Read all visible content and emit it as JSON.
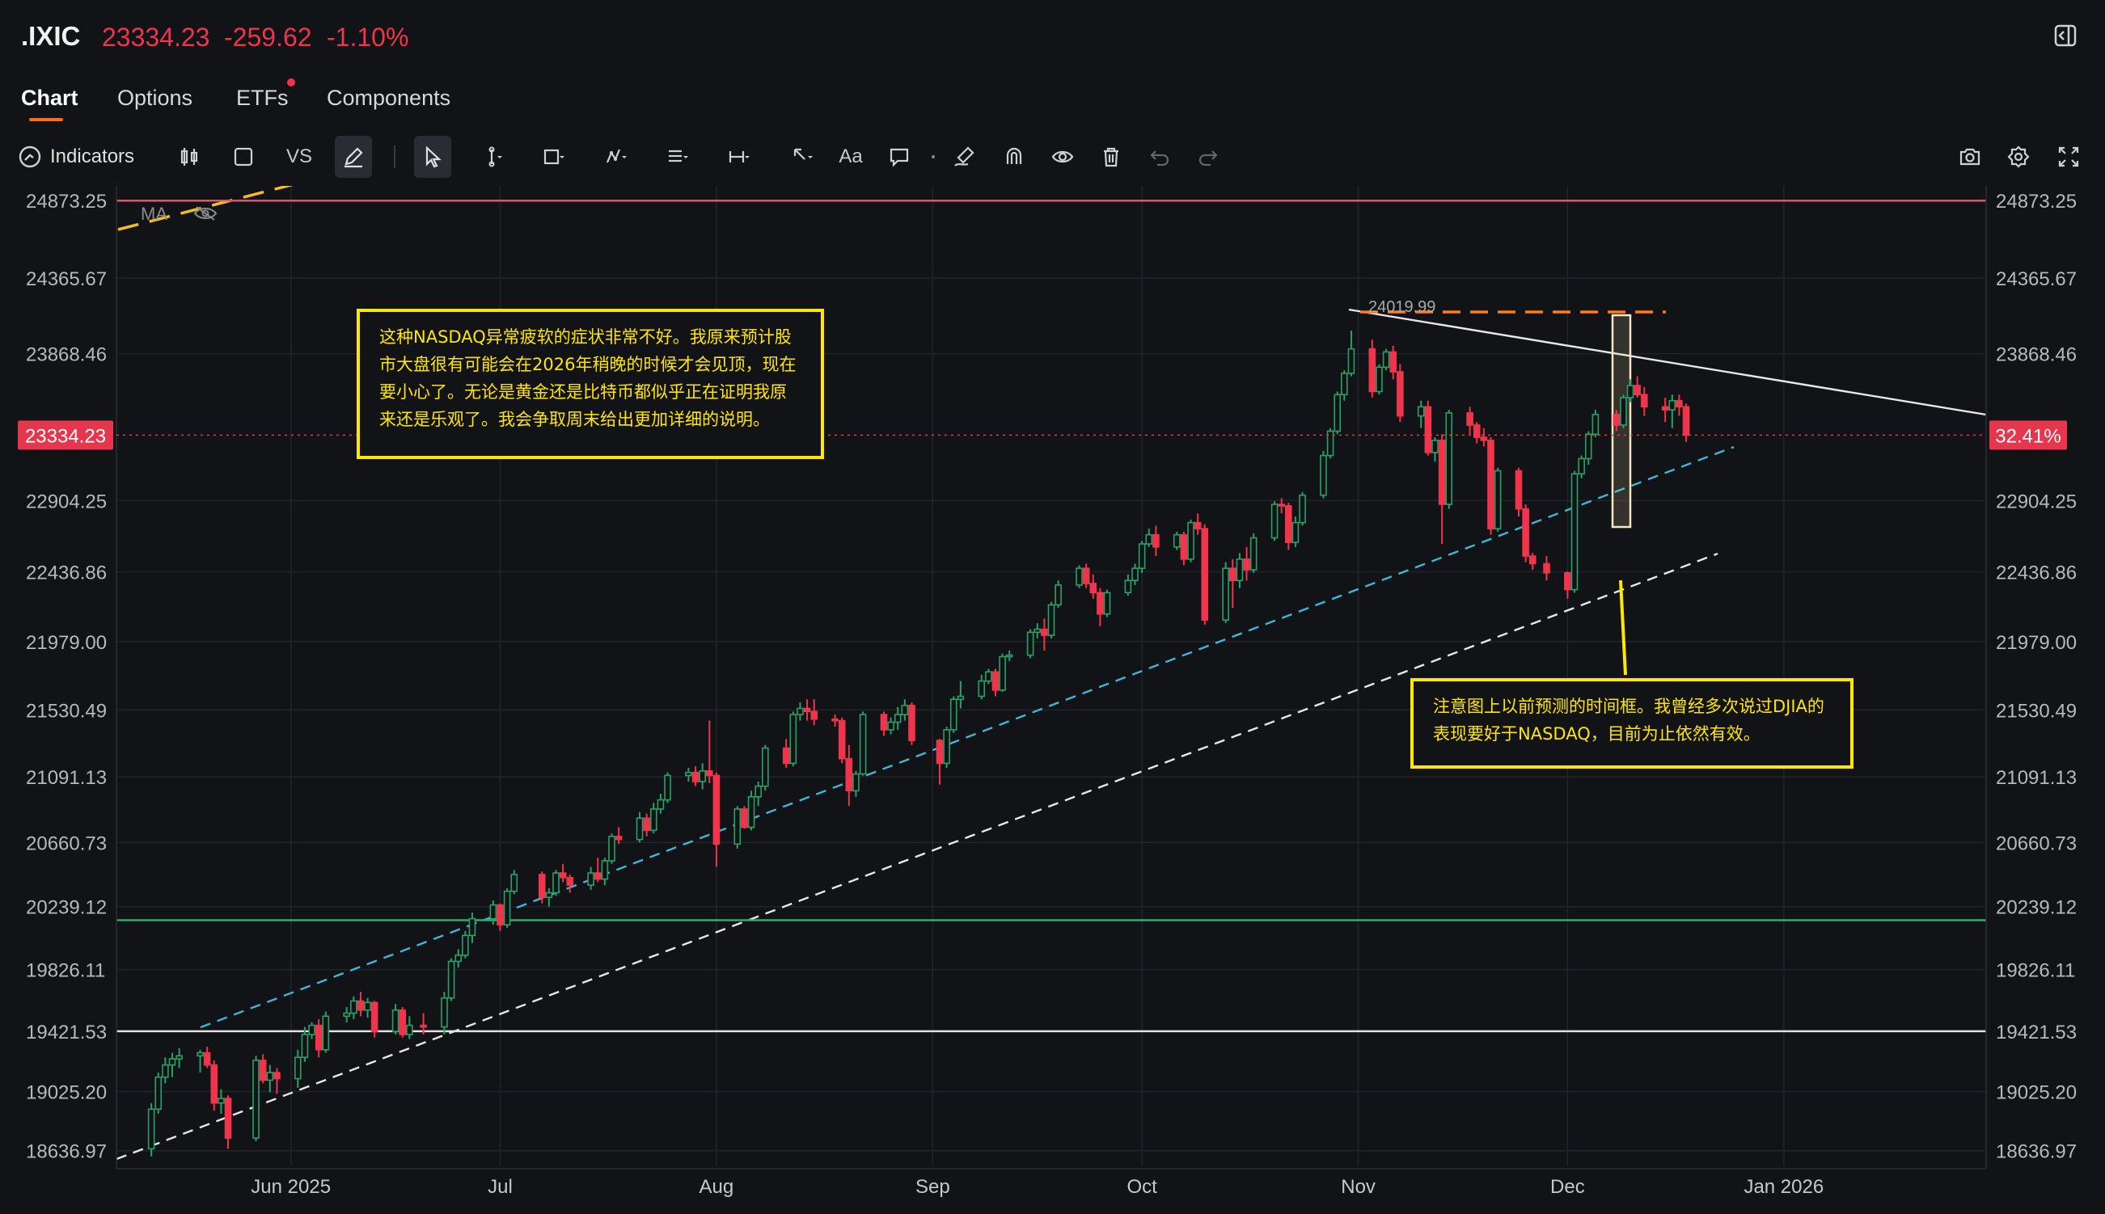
{
  "header": {
    "symbol": ".IXIC",
    "price": "23334.23",
    "change": "-259.62",
    "change_pct": "-1.10%"
  },
  "tabs": [
    {
      "label": "Chart",
      "active": true
    },
    {
      "label": "Options",
      "active": false
    },
    {
      "label": "ETFs",
      "active": false,
      "notification": true
    },
    {
      "label": "Components",
      "active": false
    }
  ],
  "toolbar": {
    "indicators_label": "Indicators",
    "vs_label": "VS",
    "text_label": "Aa"
  },
  "colors": {
    "up": "#26a269",
    "down": "#f0344c",
    "accent": "#ff6b1a",
    "annotation": "#ffe600"
  },
  "chart_data": {
    "type": "candlestick",
    "symbol": ".IXIC",
    "y_ticks": [
      "24873.25",
      "24365.67",
      "23868.46",
      "23334.23",
      "22904.25",
      "22436.86",
      "21979.00",
      "21530.49",
      "21091.13",
      "20660.73",
      "20239.12",
      "19826.11",
      "19421.53",
      "19025.20",
      "18636.97"
    ],
    "y_range": [
      18540,
      24970
    ],
    "x_ticks": [
      {
        "label": "Jun 2025",
        "date": "2025-06-01"
      },
      {
        "label": "Jul",
        "date": "2025-07-01"
      },
      {
        "label": "Aug",
        "date": "2025-08-01"
      },
      {
        "label": "Sep",
        "date": "2025-09-01"
      },
      {
        "label": "Oct",
        "date": "2025-10-01"
      },
      {
        "label": "Nov",
        "date": "2025-11-01"
      },
      {
        "label": "Dec",
        "date": "2025-12-01"
      },
      {
        "label": "Jan 2026",
        "date": "2026-01-01"
      }
    ],
    "x_range": [
      "2025-05-07",
      "2026-01-30"
    ],
    "last_price_label": "23334.23",
    "right_badge": "32.41%",
    "ma_label": "MA",
    "peak_label": "24019.99",
    "horizontal_lines": [
      {
        "value": 24873.25,
        "color": "#d9576a"
      },
      {
        "value": 20150,
        "color": "#2fae6a"
      },
      {
        "value": 19421.53,
        "color": "#e0e0e0"
      }
    ],
    "annotations": [
      {
        "text": "这种NASDAQ异常疲软的症状非常不好。我原来预计股市大盘很有可能会在2026年稍晚的时候才会见顶，现在要小心了。无论是黄金还是比特币都似乎正在证明我原来还是乐观了。我会争取周末给出更加详细的说明。"
      },
      {
        "text": "注意图上以前预测的时间框。我曾经多次说过DJIA的表现要好于NASDAQ，目前为止依然有效。"
      }
    ],
    "candles": [
      [
        "2025-05-12",
        18650,
        18950,
        18600,
        18910
      ],
      [
        "2025-05-13",
        18910,
        19150,
        18880,
        19120
      ],
      [
        "2025-05-14",
        19120,
        19250,
        19080,
        19200
      ],
      [
        "2025-05-15",
        19200,
        19280,
        19120,
        19240
      ],
      [
        "2025-05-16",
        19240,
        19310,
        19180,
        19260
      ],
      [
        "2025-05-19",
        19260,
        19300,
        19150,
        19280
      ],
      [
        "2025-05-20",
        19280,
        19320,
        19180,
        19200
      ],
      [
        "2025-05-21",
        19200,
        19230,
        18900,
        18950
      ],
      [
        "2025-05-22",
        18950,
        19040,
        18880,
        18980
      ],
      [
        "2025-05-23",
        18980,
        19000,
        18650,
        18720
      ],
      [
        "2025-05-27",
        18720,
        19260,
        18700,
        19230
      ],
      [
        "2025-05-28",
        19230,
        19270,
        19080,
        19100
      ],
      [
        "2025-05-29",
        19100,
        19200,
        19020,
        19150
      ],
      [
        "2025-05-30",
        19150,
        19180,
        19010,
        19110
      ],
      [
        "2025-06-02",
        19110,
        19300,
        19050,
        19250
      ],
      [
        "2025-06-03",
        19250,
        19450,
        19220,
        19400
      ],
      [
        "2025-06-04",
        19400,
        19480,
        19370,
        19460
      ],
      [
        "2025-06-05",
        19460,
        19500,
        19250,
        19300
      ],
      [
        "2025-06-06",
        19300,
        19550,
        19280,
        19520
      ],
      [
        "2025-06-09",
        19520,
        19580,
        19480,
        19540
      ],
      [
        "2025-06-10",
        19540,
        19650,
        19500,
        19620
      ],
      [
        "2025-06-11",
        19620,
        19680,
        19520,
        19560
      ],
      [
        "2025-06-12",
        19560,
        19640,
        19510,
        19610
      ],
      [
        "2025-06-13",
        19610,
        19620,
        19380,
        19420
      ],
      [
        "2025-06-16",
        19420,
        19600,
        19400,
        19560
      ],
      [
        "2025-06-17",
        19560,
        19580,
        19380,
        19400
      ],
      [
        "2025-06-18",
        19400,
        19520,
        19370,
        19460
      ],
      [
        "2025-06-20",
        19460,
        19540,
        19400,
        19450
      ],
      [
        "2025-06-23",
        19450,
        19680,
        19400,
        19640
      ],
      [
        "2025-06-24",
        19640,
        19900,
        19620,
        19880
      ],
      [
        "2025-06-25",
        19880,
        19960,
        19840,
        19920
      ],
      [
        "2025-06-26",
        19920,
        20080,
        19900,
        20050
      ],
      [
        "2025-06-27",
        20050,
        20200,
        20000,
        20160
      ],
      [
        "2025-06-30",
        20160,
        20280,
        20120,
        20250
      ],
      [
        "2025-07-01",
        20250,
        20260,
        20080,
        20120
      ],
      [
        "2025-07-02",
        20120,
        20360,
        20100,
        20340
      ],
      [
        "2025-07-03",
        20340,
        20480,
        20320,
        20450
      ],
      [
        "2025-07-07",
        20450,
        20470,
        20260,
        20300
      ],
      [
        "2025-07-08",
        20300,
        20360,
        20240,
        20330
      ],
      [
        "2025-07-09",
        20330,
        20480,
        20310,
        20460
      ],
      [
        "2025-07-10",
        20460,
        20520,
        20400,
        20430
      ],
      [
        "2025-07-11",
        20430,
        20450,
        20330,
        20380
      ],
      [
        "2025-07-14",
        20380,
        20500,
        20350,
        20460
      ],
      [
        "2025-07-15",
        20460,
        20560,
        20400,
        20420
      ],
      [
        "2025-07-16",
        20420,
        20560,
        20380,
        20540
      ],
      [
        "2025-07-17",
        20540,
        20720,
        20520,
        20700
      ],
      [
        "2025-07-18",
        20700,
        20760,
        20650,
        20680
      ],
      [
        "2025-07-21",
        20680,
        20860,
        20660,
        20820
      ],
      [
        "2025-07-22",
        20820,
        20850,
        20700,
        20740
      ],
      [
        "2025-07-23",
        20740,
        20920,
        20720,
        20880
      ],
      [
        "2025-07-24",
        20880,
        20980,
        20850,
        20940
      ],
      [
        "2025-07-25",
        20940,
        21120,
        20920,
        21100
      ],
      [
        "2025-07-28",
        21100,
        21150,
        21060,
        21120
      ],
      [
        "2025-07-29",
        21120,
        21160,
        21030,
        21060
      ],
      [
        "2025-07-30",
        21060,
        21180,
        21010,
        21130
      ],
      [
        "2025-07-31",
        21130,
        21460,
        21050,
        21100
      ],
      [
        "2025-08-01",
        21100,
        21120,
        20500,
        20650
      ],
      [
        "2025-08-04",
        20650,
        20900,
        20620,
        20880
      ],
      [
        "2025-08-05",
        20880,
        20900,
        20750,
        20760
      ],
      [
        "2025-08-06",
        20760,
        21000,
        20740,
        20960
      ],
      [
        "2025-08-07",
        20960,
        21060,
        20900,
        21030
      ],
      [
        "2025-08-08",
        21030,
        21300,
        21000,
        21280
      ],
      [
        "2025-08-11",
        21280,
        21340,
        21150,
        21180
      ],
      [
        "2025-08-12",
        21180,
        21520,
        21160,
        21500
      ],
      [
        "2025-08-13",
        21500,
        21580,
        21460,
        21540
      ],
      [
        "2025-08-14",
        21540,
        21600,
        21460,
        21520
      ],
      [
        "2025-08-15",
        21520,
        21600,
        21430,
        21470
      ],
      [
        "2025-08-18",
        21470,
        21500,
        21420,
        21460
      ],
      [
        "2025-08-19",
        21460,
        21480,
        21180,
        21210
      ],
      [
        "2025-08-20",
        21210,
        21300,
        20900,
        21000
      ],
      [
        "2025-08-21",
        21000,
        21130,
        20960,
        21110
      ],
      [
        "2025-08-22",
        21110,
        21520,
        21100,
        21500
      ],
      [
        "2025-08-25",
        21500,
        21520,
        21360,
        21400
      ],
      [
        "2025-08-26",
        21400,
        21480,
        21370,
        21450
      ],
      [
        "2025-08-27",
        21450,
        21550,
        21400,
        21500
      ],
      [
        "2025-08-28",
        21500,
        21600,
        21460,
        21560
      ],
      [
        "2025-08-29",
        21560,
        21580,
        21300,
        21330
      ],
      [
        "2025-09-02",
        21330,
        21340,
        21040,
        21180
      ],
      [
        "2025-09-03",
        21180,
        21420,
        21150,
        21400
      ],
      [
        "2025-09-04",
        21400,
        21620,
        21380,
        21600
      ],
      [
        "2025-09-05",
        21600,
        21720,
        21540,
        21620
      ],
      [
        "2025-09-08",
        21620,
        21760,
        21600,
        21720
      ],
      [
        "2025-09-09",
        21720,
        21800,
        21700,
        21780
      ],
      [
        "2025-09-10",
        21780,
        21800,
        21620,
        21660
      ],
      [
        "2025-09-11",
        21660,
        21900,
        21650,
        21880
      ],
      [
        "2025-09-12",
        21880,
        21920,
        21850,
        21890
      ],
      [
        "2025-09-15",
        21890,
        22060,
        21870,
        22040
      ],
      [
        "2025-09-16",
        22040,
        22100,
        22000,
        22060
      ],
      [
        "2025-09-17",
        22060,
        22130,
        21920,
        22020
      ],
      [
        "2025-09-18",
        22020,
        22240,
        22000,
        22220
      ],
      [
        "2025-09-19",
        22220,
        22380,
        22200,
        22350
      ],
      [
        "2025-09-22",
        22350,
        22480,
        22330,
        22460
      ],
      [
        "2025-09-23",
        22460,
        22490,
        22330,
        22360
      ],
      [
        "2025-09-24",
        22360,
        22420,
        22260,
        22300
      ],
      [
        "2025-09-25",
        22300,
        22330,
        22080,
        22160
      ],
      [
        "2025-09-26",
        22160,
        22320,
        22140,
        22300
      ],
      [
        "2025-09-29",
        22300,
        22420,
        22280,
        22380
      ],
      [
        "2025-09-30",
        22380,
        22490,
        22350,
        22460
      ],
      [
        "2025-10-01",
        22460,
        22640,
        22430,
        22620
      ],
      [
        "2025-10-02",
        22620,
        22720,
        22600,
        22680
      ],
      [
        "2025-10-03",
        22680,
        22740,
        22540,
        22600
      ],
      [
        "2025-10-06",
        22600,
        22700,
        22580,
        22680
      ],
      [
        "2025-10-07",
        22680,
        22700,
        22480,
        22520
      ],
      [
        "2025-10-08",
        22520,
        22780,
        22500,
        22760
      ],
      [
        "2025-10-09",
        22760,
        22820,
        22680,
        22720
      ],
      [
        "2025-10-10",
        22720,
        22750,
        22090,
        22120
      ],
      [
        "2025-10-13",
        22120,
        22500,
        22100,
        22460
      ],
      [
        "2025-10-14",
        22460,
        22520,
        22200,
        22380
      ],
      [
        "2025-10-15",
        22380,
        22560,
        22330,
        22520
      ],
      [
        "2025-10-16",
        22520,
        22600,
        22380,
        22450
      ],
      [
        "2025-10-17",
        22450,
        22690,
        22430,
        22660
      ],
      [
        "2025-10-20",
        22660,
        22900,
        22640,
        22880
      ],
      [
        "2025-10-21",
        22880,
        22920,
        22820,
        22870
      ],
      [
        "2025-10-22",
        22870,
        22890,
        22580,
        22630
      ],
      [
        "2025-10-23",
        22630,
        22800,
        22600,
        22760
      ],
      [
        "2025-10-24",
        22760,
        22960,
        22740,
        22940
      ],
      [
        "2025-10-27",
        22940,
        23230,
        22920,
        23200
      ],
      [
        "2025-10-28",
        23200,
        23380,
        23180,
        23360
      ],
      [
        "2025-10-29",
        23360,
        23620,
        23340,
        23600
      ],
      [
        "2025-10-30",
        23600,
        23760,
        23560,
        23740
      ],
      [
        "2025-10-31",
        23740,
        24020,
        23720,
        23900
      ],
      [
        "2025-11-03",
        23900,
        23960,
        23580,
        23620
      ],
      [
        "2025-11-04",
        23620,
        23800,
        23600,
        23780
      ],
      [
        "2025-11-05",
        23780,
        23900,
        23760,
        23880
      ],
      [
        "2025-11-06",
        23880,
        23920,
        23700,
        23750
      ],
      [
        "2025-11-07",
        23750,
        23800,
        23420,
        23460
      ],
      [
        "2025-11-10",
        23460,
        23560,
        23380,
        23520
      ],
      [
        "2025-11-11",
        23520,
        23560,
        23200,
        23220
      ],
      [
        "2025-11-12",
        23220,
        23320,
        23160,
        23300
      ],
      [
        "2025-11-13",
        23300,
        23340,
        22620,
        22880
      ],
      [
        "2025-11-14",
        22880,
        23500,
        22850,
        23480
      ],
      [
        "2025-11-17",
        23480,
        23520,
        23340,
        23400
      ],
      [
        "2025-11-18",
        23400,
        23420,
        23280,
        23320
      ],
      [
        "2025-11-19",
        23320,
        23380,
        23260,
        23300
      ],
      [
        "2025-11-20",
        23300,
        23320,
        22680,
        22720
      ],
      [
        "2025-11-21",
        22720,
        23120,
        22700,
        23100
      ],
      [
        "2025-11-24",
        23100,
        23120,
        22800,
        22850
      ],
      [
        "2025-11-25",
        22850,
        22880,
        22500,
        22540
      ],
      [
        "2025-11-26",
        22540,
        22560,
        22450,
        22490
      ],
      [
        "2025-11-28",
        22490,
        22540,
        22380,
        22430
      ],
      [
        "2025-12-01",
        22430,
        22440,
        22260,
        22320
      ],
      [
        "2025-12-02",
        22320,
        23100,
        22300,
        23080
      ],
      [
        "2025-12-03",
        23080,
        23200,
        23050,
        23180
      ],
      [
        "2025-12-04",
        23180,
        23360,
        23140,
        23340
      ],
      [
        "2025-12-05",
        23340,
        23500,
        23320,
        23470
      ],
      [
        "2025-12-08",
        23470,
        23500,
        23360,
        23400
      ],
      [
        "2025-12-09",
        23400,
        23600,
        23380,
        23580
      ],
      [
        "2025-12-10",
        23580,
        23700,
        23550,
        23660
      ],
      [
        "2025-12-11",
        23660,
        23720,
        23580,
        23600
      ],
      [
        "2025-12-12",
        23600,
        23650,
        23460,
        23520
      ],
      [
        "2025-12-15",
        23520,
        23580,
        23420,
        23500
      ],
      [
        "2025-12-16",
        23500,
        23600,
        23380,
        23560
      ],
      [
        "2025-12-17",
        23560,
        23600,
        23460,
        23520
      ],
      [
        "2025-12-18",
        23520,
        23540,
        23290,
        23334
      ]
    ]
  }
}
